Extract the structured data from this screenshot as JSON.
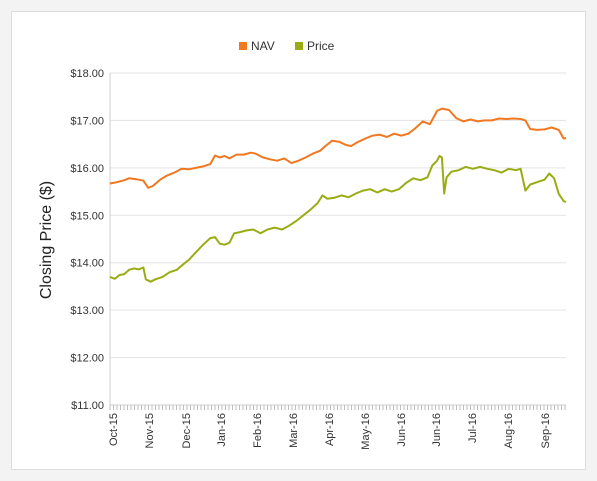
{
  "chart_data": {
    "type": "line",
    "title": "",
    "xlabel": "",
    "ylabel": "Closing Price ($)",
    "ylim": [
      11.0,
      18.0
    ],
    "y_ticks": [
      "$11.00",
      "$12.00",
      "$13.00",
      "$14.00",
      "$15.00",
      "$16.00",
      "$17.00",
      "$18.00"
    ],
    "x_ticks": [
      "Oct-15",
      "Nov-15",
      "Dec-15",
      "Jan-16",
      "Feb-16",
      "Mar-16",
      "Apr-16",
      "May-16",
      "Jun-16",
      "Jun-16",
      "Jul-16",
      "Aug-16",
      "Sep-16"
    ],
    "grid": true,
    "legend": "top-center",
    "series": [
      {
        "name": "NAV",
        "color": "#f07820",
        "points": [
          [
            0,
            15.67
          ],
          [
            3,
            15.7
          ],
          [
            6,
            15.74
          ],
          [
            8,
            15.78
          ],
          [
            11,
            15.76
          ],
          [
            14,
            15.73
          ],
          [
            16,
            15.58
          ],
          [
            18,
            15.62
          ],
          [
            21,
            15.75
          ],
          [
            24,
            15.84
          ],
          [
            27,
            15.9
          ],
          [
            30,
            15.98
          ],
          [
            33,
            15.97
          ],
          [
            36,
            16.0
          ],
          [
            39,
            16.03
          ],
          [
            42,
            16.08
          ],
          [
            44,
            16.26
          ],
          [
            46,
            16.22
          ],
          [
            48,
            16.25
          ],
          [
            50,
            16.2
          ],
          [
            53,
            16.28
          ],
          [
            56,
            16.28
          ],
          [
            59,
            16.32
          ],
          [
            61,
            16.3
          ],
          [
            64,
            16.22
          ],
          [
            67,
            16.18
          ],
          [
            70,
            16.15
          ],
          [
            73,
            16.2
          ],
          [
            76,
            16.1
          ],
          [
            79,
            16.15
          ],
          [
            82,
            16.22
          ],
          [
            85,
            16.3
          ],
          [
            88,
            16.36
          ],
          [
            90,
            16.45
          ],
          [
            93,
            16.57
          ],
          [
            96,
            16.55
          ],
          [
            99,
            16.48
          ],
          [
            101,
            16.46
          ],
          [
            104,
            16.55
          ],
          [
            107,
            16.62
          ],
          [
            110,
            16.68
          ],
          [
            113,
            16.7
          ],
          [
            116,
            16.65
          ],
          [
            119,
            16.72
          ],
          [
            122,
            16.68
          ],
          [
            125,
            16.72
          ],
          [
            128,
            16.84
          ],
          [
            131,
            16.98
          ],
          [
            134,
            16.92
          ],
          [
            137,
            17.2
          ],
          [
            139,
            17.25
          ],
          [
            142,
            17.22
          ],
          [
            145,
            17.05
          ],
          [
            148,
            16.98
          ],
          [
            151,
            17.02
          ],
          [
            154,
            16.98
          ],
          [
            157,
            17.0
          ],
          [
            160,
            17.0
          ],
          [
            163,
            17.04
          ],
          [
            166,
            17.03
          ],
          [
            169,
            17.04
          ],
          [
            172,
            17.03
          ],
          [
            174,
            17.0
          ],
          [
            176,
            16.82
          ],
          [
            179,
            16.8
          ],
          [
            182,
            16.81
          ],
          [
            185,
            16.85
          ],
          [
            188,
            16.8
          ],
          [
            190,
            16.62
          ],
          [
            191,
            16.63
          ]
        ]
      },
      {
        "name": "Price",
        "color": "#9aac14",
        "points": [
          [
            0,
            13.7
          ],
          [
            2,
            13.66
          ],
          [
            4,
            13.74
          ],
          [
            6,
            13.76
          ],
          [
            8,
            13.85
          ],
          [
            10,
            13.88
          ],
          [
            12,
            13.86
          ],
          [
            14,
            13.9
          ],
          [
            15,
            13.65
          ],
          [
            17,
            13.6
          ],
          [
            19,
            13.65
          ],
          [
            22,
            13.7
          ],
          [
            25,
            13.8
          ],
          [
            28,
            13.85
          ],
          [
            31,
            13.98
          ],
          [
            33,
            14.06
          ],
          [
            36,
            14.22
          ],
          [
            39,
            14.38
          ],
          [
            42,
            14.52
          ],
          [
            44,
            14.54
          ],
          [
            46,
            14.4
          ],
          [
            48,
            14.38
          ],
          [
            50,
            14.42
          ],
          [
            52,
            14.62
          ],
          [
            54,
            14.64
          ],
          [
            57,
            14.68
          ],
          [
            60,
            14.7
          ],
          [
            63,
            14.62
          ],
          [
            66,
            14.7
          ],
          [
            69,
            14.74
          ],
          [
            72,
            14.7
          ],
          [
            75,
            14.78
          ],
          [
            78,
            14.88
          ],
          [
            81,
            15.0
          ],
          [
            84,
            15.12
          ],
          [
            87,
            15.26
          ],
          [
            89,
            15.42
          ],
          [
            91,
            15.35
          ],
          [
            94,
            15.37
          ],
          [
            97,
            15.42
          ],
          [
            100,
            15.38
          ],
          [
            103,
            15.46
          ],
          [
            106,
            15.52
          ],
          [
            109,
            15.55
          ],
          [
            112,
            15.48
          ],
          [
            115,
            15.55
          ],
          [
            118,
            15.5
          ],
          [
            121,
            15.55
          ],
          [
            124,
            15.68
          ],
          [
            127,
            15.78
          ],
          [
            130,
            15.74
          ],
          [
            133,
            15.8
          ],
          [
            135,
            16.05
          ],
          [
            137,
            16.15
          ],
          [
            138,
            16.25
          ],
          [
            139,
            16.22
          ],
          [
            140,
            15.46
          ],
          [
            141,
            15.8
          ],
          [
            143,
            15.92
          ],
          [
            146,
            15.95
          ],
          [
            149,
            16.02
          ],
          [
            152,
            15.98
          ],
          [
            155,
            16.02
          ],
          [
            158,
            15.98
          ],
          [
            161,
            15.95
          ],
          [
            164,
            15.9
          ],
          [
            167,
            15.98
          ],
          [
            170,
            15.95
          ],
          [
            172,
            15.98
          ],
          [
            174,
            15.52
          ],
          [
            176,
            15.65
          ],
          [
            179,
            15.7
          ],
          [
            182,
            15.75
          ],
          [
            184,
            15.88
          ],
          [
            186,
            15.78
          ],
          [
            188,
            15.45
          ],
          [
            190,
            15.3
          ],
          [
            191,
            15.28
          ]
        ]
      }
    ]
  }
}
